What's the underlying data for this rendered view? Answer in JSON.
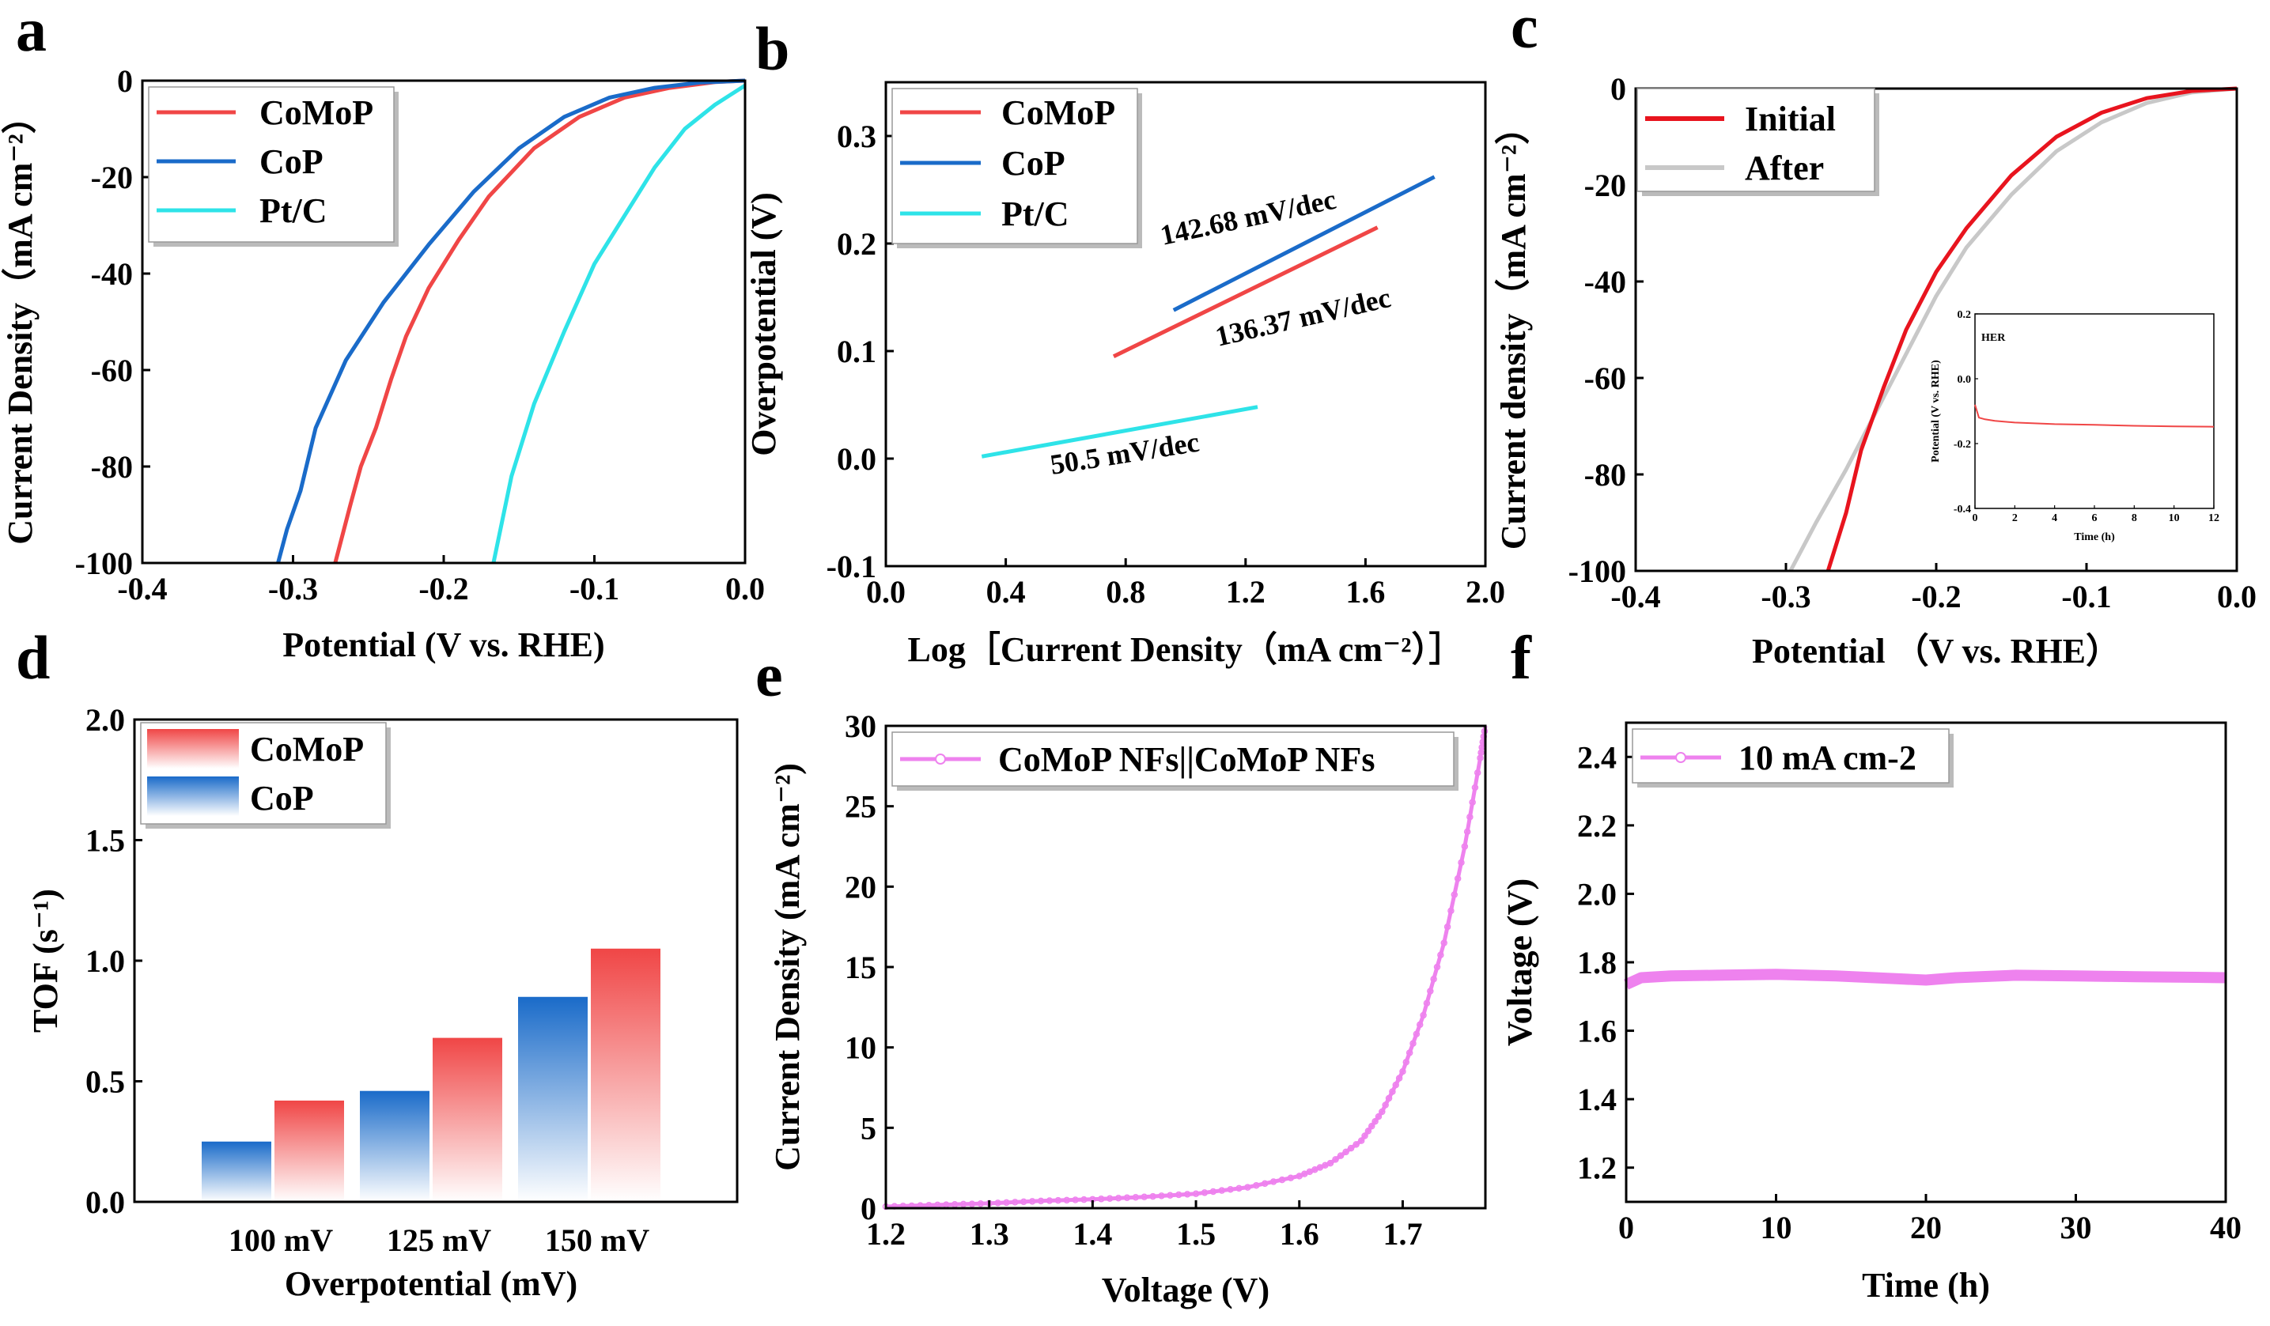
{
  "chart_data": [
    {
      "panel": "a",
      "type": "line",
      "xlabel": "Potential (V vs. RHE)",
      "ylabel": "Current Density（mA cm⁻²）",
      "xlim": [
        -0.4,
        0.0
      ],
      "ylim": [
        -100,
        0
      ],
      "xticks": [
        "-0.4",
        "-0.3",
        "-0.2",
        "-0.1",
        "0.0"
      ],
      "yticks": [
        "0",
        "-20",
        "-40",
        "-60",
        "-80",
        "-100"
      ],
      "legend_position": "top-left",
      "series": [
        {
          "name": "CoMoP",
          "color": "#f04646",
          "points": [
            [
              0.0,
              0.0
            ],
            [
              -0.02,
              -0.3
            ],
            [
              -0.05,
              -1.5
            ],
            [
              -0.08,
              -3.5
            ],
            [
              -0.11,
              -7.5
            ],
            [
              -0.14,
              -14
            ],
            [
              -0.17,
              -24
            ],
            [
              -0.19,
              -33
            ],
            [
              -0.21,
              -43
            ],
            [
              -0.225,
              -53
            ],
            [
              -0.235,
              -62
            ],
            [
              -0.245,
              -72
            ],
            [
              -0.255,
              -80
            ],
            [
              -0.262,
              -88
            ],
            [
              -0.272,
              -100
            ]
          ]
        },
        {
          "name": "CoP",
          "color": "#1a6bc9",
          "points": [
            [
              0.0,
              0.0
            ],
            [
              -0.03,
              -0.4
            ],
            [
              -0.06,
              -1.5
            ],
            [
              -0.09,
              -3.5
            ],
            [
              -0.12,
              -7.5
            ],
            [
              -0.15,
              -14
            ],
            [
              -0.18,
              -23
            ],
            [
              -0.21,
              -34
            ],
            [
              -0.24,
              -46
            ],
            [
              -0.265,
              -58
            ],
            [
              -0.285,
              -72
            ],
            [
              -0.295,
              -85
            ],
            [
              -0.304,
              -93
            ],
            [
              -0.31,
              -100
            ]
          ]
        },
        {
          "name": "Pt/C",
          "color": "#2ee3e8",
          "points": [
            [
              0.0,
              -1
            ],
            [
              -0.01,
              -3
            ],
            [
              -0.02,
              -5
            ],
            [
              -0.04,
              -10
            ],
            [
              -0.06,
              -18
            ],
            [
              -0.08,
              -28
            ],
            [
              -0.1,
              -38
            ],
            [
              -0.12,
              -52
            ],
            [
              -0.14,
              -67
            ],
            [
              -0.155,
              -82
            ],
            [
              -0.167,
              -100
            ]
          ]
        }
      ]
    },
    {
      "panel": "b",
      "type": "line",
      "xlabel": "Log［Current Density（mA cm⁻²）］",
      "ylabel": "Overpotential (V)",
      "xlim": [
        0.0,
        2.0
      ],
      "ylim": [
        -0.1,
        0.35
      ],
      "xticks": [
        "0.0",
        "0.4",
        "0.8",
        "1.2",
        "1.6",
        "2.0"
      ],
      "yticks": [
        "-0.1",
        "0.0",
        "0.1",
        "0.2",
        "0.3"
      ],
      "legend_position": "top-left",
      "series": [
        {
          "name": "CoMoP",
          "color": "#f04646",
          "points": [
            [
              0.76,
              0.095
            ],
            [
              1.64,
              0.215
            ]
          ],
          "slope_label": "136.37 mV/dec"
        },
        {
          "name": "CoP",
          "color": "#1a6bc9",
          "points": [
            [
              0.96,
              0.138
            ],
            [
              1.83,
              0.262
            ]
          ],
          "slope_label": "142.68 mV/dec"
        },
        {
          "name": "Pt/C",
          "color": "#2ee3e8",
          "points": [
            [
              0.32,
              0.002
            ],
            [
              1.24,
              0.048
            ]
          ],
          "slope_label": "50.5 mV/dec"
        }
      ]
    },
    {
      "panel": "c",
      "type": "line",
      "xlabel": "Potential （V vs. RHE）",
      "ylabel": "Current density（mA cm⁻²）",
      "xlim": [
        -0.4,
        0.0
      ],
      "ylim": [
        -100,
        0
      ],
      "xticks": [
        "-0.4",
        "-0.3",
        "-0.2",
        "-0.1",
        "0.0"
      ],
      "yticks": [
        "0",
        "-20",
        "-40",
        "-60",
        "-80",
        "-100"
      ],
      "legend_position": "top-left",
      "series": [
        {
          "name": "Initial",
          "color": "#e8141e",
          "points": [
            [
              0.0,
              0.0
            ],
            [
              -0.03,
              -0.5
            ],
            [
              -0.06,
              -2
            ],
            [
              -0.09,
              -5
            ],
            [
              -0.12,
              -10
            ],
            [
              -0.15,
              -18
            ],
            [
              -0.18,
              -29
            ],
            [
              -0.2,
              -38
            ],
            [
              -0.22,
              -50
            ],
            [
              -0.235,
              -62
            ],
            [
              -0.25,
              -75
            ],
            [
              -0.26,
              -88
            ],
            [
              -0.272,
              -100
            ]
          ]
        },
        {
          "name": "After",
          "color": "#c8c8c8",
          "points": [
            [
              0.0,
              0.0
            ],
            [
              -0.03,
              -0.8
            ],
            [
              -0.06,
              -3
            ],
            [
              -0.09,
              -7
            ],
            [
              -0.12,
              -13
            ],
            [
              -0.15,
              -22
            ],
            [
              -0.18,
              -33
            ],
            [
              -0.2,
              -43
            ],
            [
              -0.22,
              -55
            ],
            [
              -0.24,
              -67
            ],
            [
              -0.26,
              -79
            ],
            [
              -0.28,
              -90
            ],
            [
              -0.297,
              -100
            ]
          ]
        }
      ],
      "inset": {
        "title": "HER",
        "xlabel": "Time (h)",
        "ylabel": "Potential (V vs. RHE)",
        "xlim": [
          0,
          12
        ],
        "ylim": [
          -0.4,
          0.2
        ],
        "xticks": [
          "0",
          "2",
          "4",
          "6",
          "8",
          "10",
          "12"
        ],
        "yticks": [
          "0.2",
          "0.0",
          "-0.2",
          "-0.4"
        ],
        "color": "#f04646",
        "points": [
          [
            0.0,
            -0.08
          ],
          [
            0.2,
            -0.12
          ],
          [
            0.5,
            -0.125
          ],
          [
            1,
            -0.13
          ],
          [
            2,
            -0.135
          ],
          [
            4,
            -0.14
          ],
          [
            6,
            -0.142
          ],
          [
            8,
            -0.145
          ],
          [
            10,
            -0.147
          ],
          [
            12,
            -0.148
          ]
        ]
      }
    },
    {
      "panel": "d",
      "type": "bar",
      "xlabel": "Overpotential (mV)",
      "ylabel": "TOF (s⁻¹)",
      "ylim": [
        0.0,
        2.0
      ],
      "yticks": [
        "0.0",
        "0.5",
        "1.0",
        "1.5",
        "2.0"
      ],
      "categories": [
        "100 mV",
        "125 mV",
        "150 mV"
      ],
      "legend_position": "top-left",
      "series": [
        {
          "name": "CoP",
          "color": "#1a6bc9",
          "values": [
            0.25,
            0.46,
            0.85
          ]
        },
        {
          "name": "CoMoP",
          "color": "#f04646",
          "values": [
            0.42,
            0.68,
            1.05
          ]
        }
      ]
    },
    {
      "panel": "e",
      "type": "line",
      "xlabel": "Voltage (V)",
      "ylabel": "Current Density (mA cm⁻²)",
      "xlim": [
        1.2,
        1.78
      ],
      "ylim": [
        0,
        30
      ],
      "xticks": [
        "1.2",
        "1.3",
        "1.4",
        "1.5",
        "1.6",
        "1.7"
      ],
      "yticks": [
        "0",
        "5",
        "10",
        "15",
        "20",
        "25",
        "30"
      ],
      "legend_position": "top-left",
      "series": [
        {
          "name": "CoMoP NFs||CoMoP NFs",
          "color": "#ee82ee",
          "points": [
            [
              1.2,
              0.1
            ],
            [
              1.25,
              0.2
            ],
            [
              1.3,
              0.3
            ],
            [
              1.35,
              0.45
            ],
            [
              1.4,
              0.55
            ],
            [
              1.45,
              0.7
            ],
            [
              1.5,
              0.9
            ],
            [
              1.55,
              1.3
            ],
            [
              1.6,
              2.0
            ],
            [
              1.63,
              2.8
            ],
            [
              1.66,
              4.2
            ],
            [
              1.68,
              6.0
            ],
            [
              1.7,
              8.5
            ],
            [
              1.72,
              12.0
            ],
            [
              1.74,
              16.5
            ],
            [
              1.76,
              22.5
            ],
            [
              1.775,
              28.0
            ],
            [
              1.78,
              30.0
            ]
          ]
        }
      ]
    },
    {
      "panel": "f",
      "type": "line",
      "xlabel": "Time (h)",
      "ylabel": "Voltage (V)",
      "xlim": [
        0,
        40
      ],
      "ylim": [
        1.1,
        2.5
      ],
      "xticks": [
        "0",
        "10",
        "20",
        "30",
        "40"
      ],
      "yticks": [
        "1.2",
        "1.4",
        "1.6",
        "1.8",
        "2.0",
        "2.2",
        "2.4"
      ],
      "legend_position": "top-left",
      "series": [
        {
          "name": "10 mA cm⁻²",
          "color": "#ee82ee",
          "points": [
            [
              0,
              1.735
            ],
            [
              1,
              1.755
            ],
            [
              3,
              1.76
            ],
            [
              6,
              1.762
            ],
            [
              10,
              1.765
            ],
            [
              14,
              1.76
            ],
            [
              18,
              1.752
            ],
            [
              20,
              1.748
            ],
            [
              22,
              1.755
            ],
            [
              26,
              1.762
            ],
            [
              30,
              1.76
            ],
            [
              34,
              1.758
            ],
            [
              38,
              1.756
            ],
            [
              40,
              1.755
            ]
          ]
        }
      ]
    }
  ],
  "panel_labels": [
    "a",
    "b",
    "c",
    "d",
    "e",
    "f"
  ],
  "legend_labels": {
    "a": [
      "CoMoP",
      "CoP",
      "Pt/C"
    ],
    "b": [
      "CoMoP",
      "CoP",
      "Pt/C"
    ],
    "c": [
      "Initial",
      "After"
    ],
    "d": [
      "CoMoP",
      "CoP"
    ],
    "e": [
      "CoMoP NFs||CoMoP NFs"
    ],
    "f": [
      "10 mA cm-2"
    ]
  }
}
